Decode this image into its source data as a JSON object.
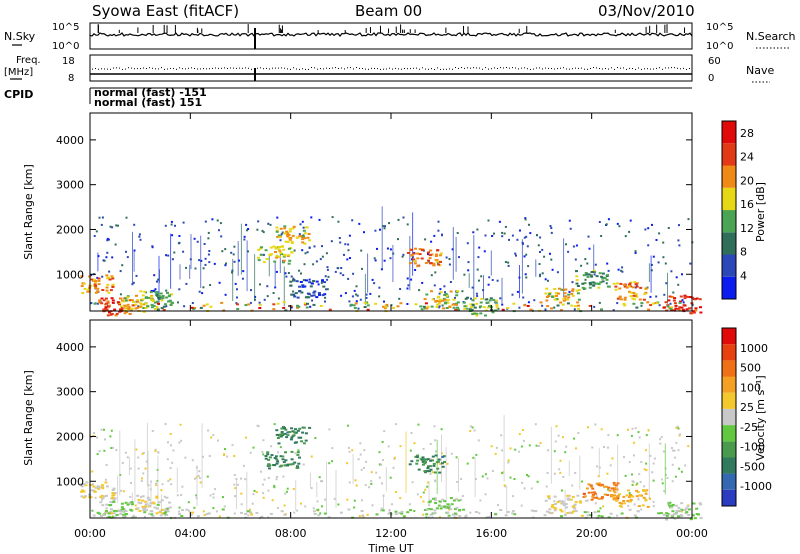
{
  "header": {
    "title": "Syowa East (fitACF)",
    "beam": "Beam 00",
    "date": "03/Nov/2010"
  },
  "top_panels": {
    "nsky_label": "N.Sky",
    "nsky_scale_top": "10^5",
    "nsky_scale_bottom": "10^0",
    "nsearch_label": "N.Search",
    "nsearch_scale_top": "10^5",
    "nsearch_scale_bottom": "10^0",
    "freq_label_1": "Freq.",
    "freq_label_2": "[MHz]",
    "freq_top": "18",
    "freq_bottom": "8",
    "nave_label": "Nave",
    "nave_top": "60",
    "nave_bottom": "0",
    "cpid_label": "CPID",
    "cpid_line1": "normal (fast) -151",
    "cpid_line2": "normal (fast) 151"
  },
  "axes": {
    "ylabel": "Slant Range [km]",
    "yticks": [
      "1000",
      "2000",
      "3000",
      "4000"
    ],
    "xticks": [
      "00:00",
      "04:00",
      "08:00",
      "12:00",
      "16:00",
      "20:00",
      "00:00"
    ],
    "xlabel": "Time UT"
  },
  "colorbars": {
    "power": {
      "label": "Power [dB]",
      "ticks": [
        "4",
        "8",
        "12",
        "16",
        "20",
        "24",
        "28"
      ],
      "colors": [
        "#0a1cf0",
        "#2c48b8",
        "#2f6f5a",
        "#4aa454",
        "#e7d816",
        "#f08a16",
        "#e23a16",
        "#e00a0a"
      ]
    },
    "velocity": {
      "label": "Velocity [m s⁻¹]",
      "ticks": [
        "1000",
        "500",
        "100",
        "25",
        "-25",
        "-100",
        "-500",
        "-1000"
      ],
      "colors": [
        "#2c3cc0",
        "#3468b0",
        "#327a5e",
        "#4a9a4e",
        "#62c840",
        "#c8c8c8",
        "#f3c82e",
        "#f4a024",
        "#f07018",
        "#e8400e",
        "#e00a0a"
      ]
    }
  },
  "chart_data": [
    {
      "type": "heatmap",
      "title": "Power [dB]",
      "x_unit": "UT hour",
      "xlim": [
        0,
        24
      ],
      "ylim": [
        180,
        4600
      ],
      "zlim": [
        0,
        30
      ],
      "blobs": [
        {
          "t": 0.3,
          "r": 800,
          "v": 20
        },
        {
          "t": 1.0,
          "r": 300,
          "v": 24
        },
        {
          "t": 1.8,
          "r": 350,
          "v": 18
        },
        {
          "t": 2.6,
          "r": 450,
          "v": 14
        },
        {
          "t": 7.3,
          "r": 1450,
          "v": 16
        },
        {
          "t": 8.0,
          "r": 1900,
          "v": 18
        },
        {
          "t": 8.6,
          "r": 700,
          "v": 6
        },
        {
          "t": 13.3,
          "r": 1400,
          "v": 22
        },
        {
          "t": 14.0,
          "r": 450,
          "v": 16
        },
        {
          "t": 15.5,
          "r": 300,
          "v": 14
        },
        {
          "t": 18.8,
          "r": 500,
          "v": 18
        },
        {
          "t": 20.0,
          "r": 900,
          "v": 12
        },
        {
          "t": 21.5,
          "r": 650,
          "v": 20
        },
        {
          "t": 23.6,
          "r": 350,
          "v": 26
        }
      ]
    },
    {
      "type": "heatmap",
      "title": "Velocity [m s⁻¹]",
      "x_unit": "UT hour",
      "xlim": [
        0,
        24
      ],
      "ylim": [
        180,
        4600
      ],
      "zlim": [
        -1000,
        1000
      ],
      "blobs": [
        {
          "t": 0.3,
          "r": 800,
          "v": 100
        },
        {
          "t": 1.0,
          "r": 400,
          "v": -100
        },
        {
          "t": 2.5,
          "r": 500,
          "v": 50
        },
        {
          "t": 7.6,
          "r": 1500,
          "v": -500
        },
        {
          "t": 8.0,
          "r": 2050,
          "v": -500
        },
        {
          "t": 13.4,
          "r": 1400,
          "v": -500
        },
        {
          "t": 14.0,
          "r": 450,
          "v": -100
        },
        {
          "t": 18.8,
          "r": 500,
          "v": 100
        },
        {
          "t": 20.3,
          "r": 800,
          "v": 500
        },
        {
          "t": 21.5,
          "r": 650,
          "v": 300
        },
        {
          "t": 23.6,
          "r": 350,
          "v": -100
        }
      ]
    }
  ]
}
